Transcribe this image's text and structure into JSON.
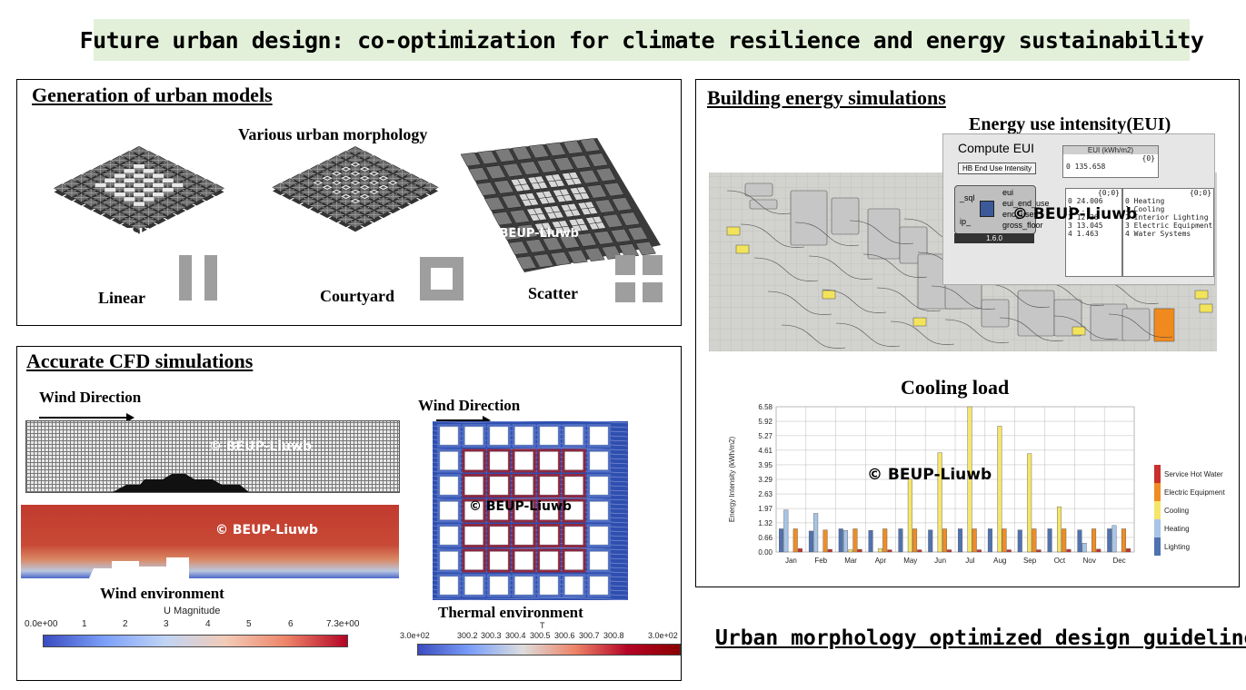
{
  "title": "Future urban design: co-optimization for climate resilience and energy sustainability",
  "watermark": "© BEUP-Liuwb",
  "generation": {
    "title": "Generation of urban models",
    "subtitle": "Various urban morphology",
    "types": [
      "Linear",
      "Courtyard",
      "Scatter"
    ]
  },
  "cfd": {
    "title": "Accurate CFD simulations",
    "wind_direction_label": "Wind Direction",
    "wind_env_label": "Wind environment",
    "thermal_env_label": "Thermal environment",
    "u_colorbar": {
      "title": "U Magnitude",
      "ticks": [
        "0.0e+00",
        "1",
        "2",
        "3",
        "4",
        "5",
        "6",
        "7.3e+00"
      ]
    },
    "t_colorbar": {
      "title": "T",
      "ticks": [
        "3.0e+02",
        "300.2",
        "300.3",
        "300.4",
        "300.5",
        "300.6",
        "300.7",
        "300.8",
        "3.0e+02"
      ]
    }
  },
  "energy": {
    "title": "Building energy simulations",
    "eui_title": "Energy use intensity(EUI)",
    "compute_eui": {
      "title": "Compute EUI",
      "button": "HB End Use Intensity",
      "inputs": [
        "_sql",
        "ip_"
      ],
      "outputs": [
        "eui",
        "eui_end_use",
        "end_uses",
        "gross_floor"
      ],
      "version": "1.6.0",
      "eui_box_title": "EUI (kWh/m2)",
      "eui_box_header": "{0}",
      "eui_value": "0 135.658",
      "end_use_header": "{0;0}",
      "end_use_values": [
        "0 24.006",
        "1 ...",
        "2 12.36",
        "3 13.045",
        "4 1.463"
      ],
      "end_use_names": [
        "0 Heating",
        "1 Cooling",
        "2 Interior Lighting",
        "3 Electric Equipment",
        "4 Water Systems"
      ]
    },
    "cooling_title": "Cooling load"
  },
  "colors": {
    "banner": "#e2f0d9",
    "lighting": "#4f72b0",
    "heating": "#a8c4e6",
    "cooling": "#f5e56b",
    "electric": "#ef8c24",
    "hot_water": "#c9302c"
  },
  "chart_data": {
    "type": "bar",
    "title": "Cooling load",
    "ylabel": "Energy Intensity (kWh/m2)",
    "xlabel": "",
    "ylim": [
      0,
      6.58
    ],
    "yticks": [
      "0.00",
      "0.66",
      "1.32",
      "1.97",
      "2.63",
      "3.29",
      "3.95",
      "4.61",
      "5.27",
      "5.92",
      "6.58"
    ],
    "legend_position": "right",
    "categories": [
      "Jan",
      "Feb",
      "Mar",
      "Apr",
      "May",
      "Jun",
      "Jul",
      "Aug",
      "Sep",
      "Oct",
      "Nov",
      "Dec"
    ],
    "series": [
      {
        "name": "Lighting",
        "values": [
          1.05,
          0.95,
          1.05,
          0.98,
          1.05,
          1.0,
          1.05,
          1.05,
          1.0,
          1.05,
          1.0,
          1.05
        ]
      },
      {
        "name": "Heating",
        "values": [
          1.9,
          1.75,
          0.98,
          0.0,
          0.0,
          0.0,
          0.0,
          0.0,
          0.0,
          0.0,
          0.4,
          1.2
        ]
      },
      {
        "name": "Cooling",
        "values": [
          0.0,
          0.0,
          0.1,
          0.15,
          3.3,
          4.5,
          6.58,
          5.7,
          4.45,
          2.05,
          0.0,
          0.0
        ]
      },
      {
        "name": "Electric Equipment",
        "values": [
          1.05,
          1.0,
          1.05,
          1.05,
          1.05,
          1.05,
          1.05,
          1.05,
          1.05,
          1.05,
          1.05,
          1.05
        ]
      },
      {
        "name": "Service Hot Water",
        "values": [
          0.15,
          0.12,
          0.12,
          0.1,
          0.1,
          0.1,
          0.1,
          0.1,
          0.1,
          0.12,
          0.13,
          0.15
        ]
      }
    ],
    "legend": [
      "Service Hot Water",
      "Electric Equipment",
      "Cooling",
      "Heating",
      "Lighting"
    ]
  },
  "guideline": "Urban morphology optimized design guideline"
}
